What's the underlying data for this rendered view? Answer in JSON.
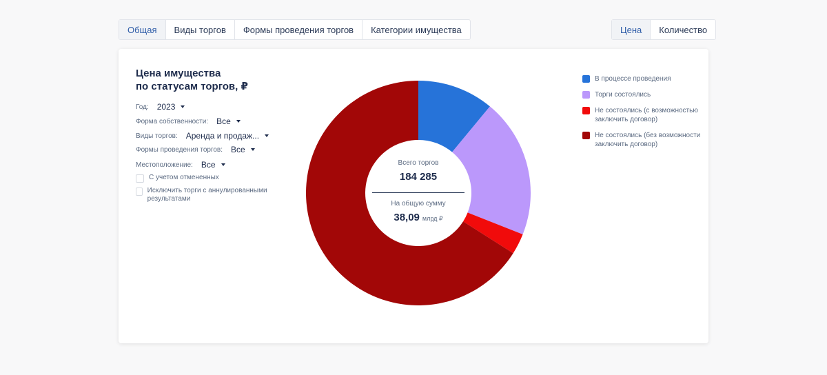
{
  "tabs_left": [
    {
      "label": "Общая",
      "active": true
    },
    {
      "label": "Виды торгов",
      "active": false
    },
    {
      "label": "Формы проведения торгов",
      "active": false
    },
    {
      "label": "Категории имущества",
      "active": false
    }
  ],
  "tabs_right": [
    {
      "label": "Цена",
      "active": true
    },
    {
      "label": "Количество",
      "active": false
    }
  ],
  "title_line1": "Цена имущества",
  "title_line2": "по статусам торгов, ₽",
  "filters": {
    "year": {
      "label": "Год:",
      "value": "2023"
    },
    "ownership": {
      "label": "Форма собственности:",
      "value": "Все"
    },
    "trade_types": {
      "label": "Виды торгов:",
      "value": "Аренда и продаж..."
    },
    "trade_forms": {
      "label": "Формы проведения торгов:",
      "value": "Все"
    },
    "location": {
      "label": "Местоположение:",
      "value": "Все"
    }
  },
  "checkboxes": {
    "cancelled": {
      "label": "С учетом отмененных",
      "checked": false
    },
    "annulled": {
      "label": "Исключить торги с аннулированными результатами",
      "checked": false
    }
  },
  "center": {
    "total_label": "Всего торгов",
    "total_value": "184 285",
    "sum_label": "На общую сумму",
    "sum_value": "38,09",
    "sum_unit": "млрд ₽"
  },
  "chart_data": {
    "type": "pie",
    "donut": true,
    "categories": [
      "В процессе проведения",
      "Торги состоялись",
      "Не состоялись (с возможностью заключить договор)",
      "Не состоялись (без возможности заключить договор)"
    ],
    "values": [
      11,
      20,
      3,
      66
    ],
    "colors": [
      "#2673d9",
      "#bb98fb",
      "#f10b0b",
      "#a20707"
    ],
    "legend_position": "right"
  }
}
